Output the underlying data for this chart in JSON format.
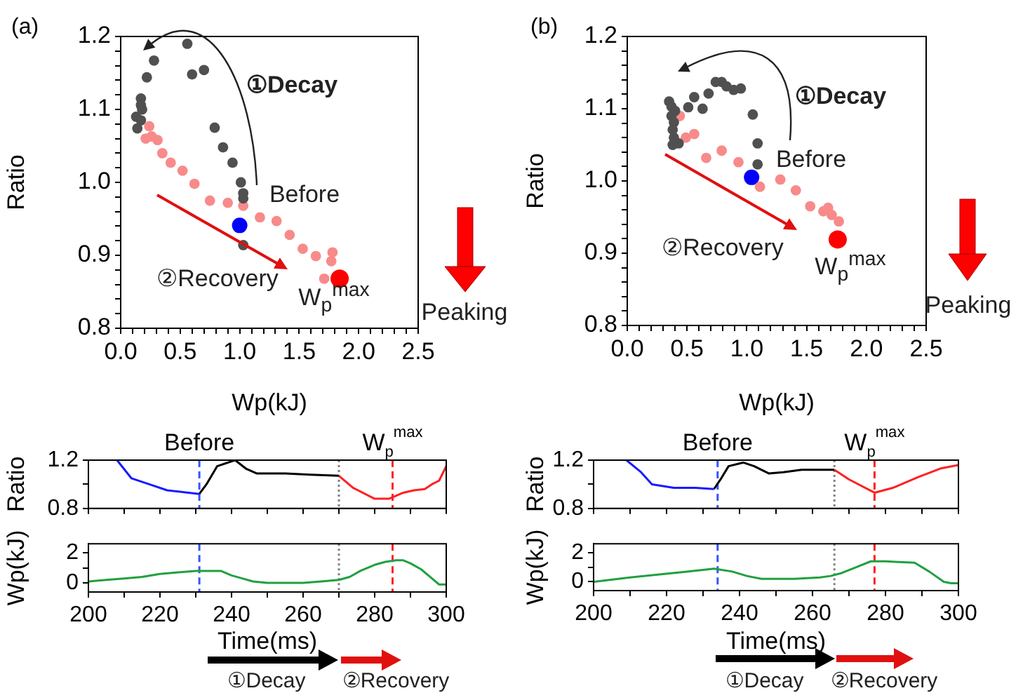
{
  "chart_data": [
    {
      "type": "scatter",
      "title": "(a)",
      "xlabel": "Wp(kJ)",
      "ylabel": "Ratio",
      "marker": "circle",
      "xlim": [
        0,
        2.5
      ],
      "ylim": [
        0.8,
        1.2
      ],
      "xticks": [
        {
          "value": 0,
          "label": "0.0"
        },
        {
          "value": 0.1,
          "label": null
        },
        {
          "value": 0.2,
          "label": null
        },
        {
          "value": 0.3,
          "label": null
        },
        {
          "value": 0.4,
          "label": null
        },
        0.5,
        {
          "value": 0.6,
          "label": null
        },
        {
          "value": 0.7,
          "label": null
        },
        {
          "value": 0.8,
          "label": null
        },
        {
          "value": 0.9,
          "label": null
        },
        {
          "value": 1,
          "label": "1.0"
        },
        {
          "value": 1.1,
          "label": null
        },
        {
          "value": 1.2,
          "label": null
        },
        {
          "value": 1.3,
          "label": null
        },
        {
          "value": 1.4,
          "label": null
        },
        1.5,
        {
          "value": 1.6,
          "label": null
        },
        {
          "value": 1.7,
          "label": null
        },
        {
          "value": 1.8,
          "label": null
        },
        {
          "value": 1.9,
          "label": null
        },
        {
          "value": 2,
          "label": "2.0"
        },
        {
          "value": 2.1,
          "label": null
        },
        {
          "value": 2.2,
          "label": null
        },
        {
          "value": 2.3,
          "label": null
        },
        {
          "value": 2.4,
          "label": null
        },
        2.5
      ],
      "yticks": [
        0.8,
        {
          "value": 0.82,
          "label": null
        },
        {
          "value": 0.84,
          "label": null
        },
        {
          "value": 0.86,
          "label": null
        },
        {
          "value": 0.88,
          "label": null
        },
        0.9,
        {
          "value": 0.92,
          "label": null
        },
        {
          "value": 0.94,
          "label": null
        },
        {
          "value": 0.96,
          "label": null
        },
        {
          "value": 0.98,
          "label": null
        },
        {
          "value": 1,
          "label": "1.0"
        },
        {
          "value": 1.02,
          "label": null
        },
        {
          "value": 1.04,
          "label": null
        },
        {
          "value": 1.06,
          "label": null
        },
        {
          "value": 1.08,
          "label": null
        },
        1.1,
        {
          "value": 1.12,
          "label": null
        },
        {
          "value": 1.14,
          "label": null
        },
        {
          "value": 1.16,
          "label": null
        },
        {
          "value": 1.18,
          "label": null
        },
        1.2
      ],
      "annotations": [
        "①Decay",
        "Before",
        "②Recovery",
        "W$_{p}$$^{max}$",
        "Peaking"
      ],
      "series": [
        {
          "color": "#505050",
          "x": [
            0.56,
            0.28,
            0.22,
            0.6,
            0.7,
            0.17,
            0.17,
            0.18,
            0.13,
            0.17,
            0.14,
            0.79,
            0.86,
            0.94,
            1.01,
            1.03,
            1.03,
            1.03
          ],
          "values": [
            1.19,
            1.167,
            1.144,
            1.148,
            1.154,
            1.115,
            1.106,
            1.1,
            1.09,
            1.085,
            1.074,
            1.075,
            1.048,
            1.027,
            1.0,
            0.985,
            0.978,
            0.914
          ]
        },
        {
          "color": "#f88a8a",
          "x": [
            0.24,
            0.21,
            0.26,
            0.31,
            0.35,
            0.42,
            0.52,
            0.62,
            0.75,
            0.9,
            1.03,
            1.17,
            1.31,
            1.42,
            1.53,
            1.64,
            1.78,
            1.77,
            1.71
          ],
          "values": [
            1.077,
            1.06,
            1.063,
            1.058,
            1.04,
            1.027,
            1.016,
            0.998,
            0.975,
            0.972,
            0.968,
            0.952,
            0.947,
            0.928,
            0.909,
            0.899,
            0.904,
            0.892,
            0.868
          ]
        },
        {
          "color": "#0000ff",
          "x": [
            1.0
          ],
          "values": [
            0.941
          ]
        },
        {
          "color": "#ff0000",
          "x": [
            1.84
          ],
          "values": [
            0.868
          ]
        }
      ]
    },
    {
      "type": "scatter",
      "title": "(b)",
      "xlabel": "Wp(kJ)",
      "ylabel": "Ratio",
      "marker": "circle",
      "xlim": [
        0,
        2.5
      ],
      "ylim": [
        0.8,
        1.2
      ],
      "xticks": [
        {
          "value": 0,
          "label": "0.0"
        },
        {
          "value": 0.1,
          "label": null
        },
        {
          "value": 0.2,
          "label": null
        },
        {
          "value": 0.3,
          "label": null
        },
        {
          "value": 0.4,
          "label": null
        },
        0.5,
        {
          "value": 0.6,
          "label": null
        },
        {
          "value": 0.7,
          "label": null
        },
        {
          "value": 0.8,
          "label": null
        },
        {
          "value": 0.9,
          "label": null
        },
        {
          "value": 1,
          "label": "1.0"
        },
        {
          "value": 1.1,
          "label": null
        },
        {
          "value": 1.2,
          "label": null
        },
        {
          "value": 1.3,
          "label": null
        },
        {
          "value": 1.4,
          "label": null
        },
        1.5,
        {
          "value": 1.6,
          "label": null
        },
        {
          "value": 1.7,
          "label": null
        },
        {
          "value": 1.8,
          "label": null
        },
        {
          "value": 1.9,
          "label": null
        },
        {
          "value": 2,
          "label": "2.0"
        },
        {
          "value": 2.1,
          "label": null
        },
        {
          "value": 2.2,
          "label": null
        },
        {
          "value": 2.3,
          "label": null
        },
        {
          "value": 2.4,
          "label": null
        },
        2.5
      ],
      "yticks": [
        0.8,
        {
          "value": 0.82,
          "label": null
        },
        {
          "value": 0.84,
          "label": null
        },
        {
          "value": 0.86,
          "label": null
        },
        {
          "value": 0.88,
          "label": null
        },
        0.9,
        {
          "value": 0.92,
          "label": null
        },
        {
          "value": 0.94,
          "label": null
        },
        {
          "value": 0.96,
          "label": null
        },
        {
          "value": 0.98,
          "label": null
        },
        {
          "value": 1,
          "label": "1.0"
        },
        {
          "value": 1.02,
          "label": null
        },
        {
          "value": 1.04,
          "label": null
        },
        {
          "value": 1.06,
          "label": null
        },
        {
          "value": 1.08,
          "label": null
        },
        1.1,
        {
          "value": 1.12,
          "label": null
        },
        {
          "value": 1.14,
          "label": null
        },
        {
          "value": 1.16,
          "label": null
        },
        {
          "value": 1.18,
          "label": null
        },
        1.2
      ],
      "annotations": [
        "①Decay",
        "Before",
        "②Recovery",
        "W$_{p}$$^{max}$",
        "Peaking"
      ],
      "series": [
        {
          "color": "#505050",
          "x": [
            0.35,
            0.37,
            0.4,
            0.37,
            0.39,
            0.38,
            0.39,
            0.38,
            0.43,
            0.51,
            0.56,
            0.63,
            0.68,
            0.74,
            0.79,
            0.83,
            0.89,
            0.95,
            1.05,
            1.09,
            1.09
          ],
          "values": [
            1.11,
            1.103,
            1.097,
            1.09,
            1.081,
            1.071,
            1.06,
            1.05,
            1.052,
            1.102,
            1.116,
            1.1,
            1.121,
            1.137,
            1.137,
            1.131,
            1.126,
            1.128,
            1.092,
            1.052,
            1.023
          ]
        },
        {
          "color": "#f88a8a",
          "x": [
            0.44,
            0.49,
            0.56,
            0.66,
            0.79,
            0.93,
            1.11,
            1.28,
            1.41,
            1.53,
            1.64,
            1.68,
            1.71,
            1.77
          ],
          "values": [
            1.09,
            1.06,
            1.065,
            1.032,
            1.042,
            1.026,
            0.992,
            1.002,
            0.987,
            0.965,
            0.958,
            0.963,
            0.953,
            0.944
          ]
        },
        {
          "color": "#0000ff",
          "x": [
            1.04
          ],
          "values": [
            1.005
          ]
        },
        {
          "color": "#ff0000",
          "x": [
            1.76
          ],
          "values": [
            0.919
          ]
        }
      ]
    },
    {
      "type": "line",
      "ylabel": "Ratio",
      "tick_labels": "y",
      "xlim": [
        200,
        300
      ],
      "xticks": [
        200,
        210,
        220,
        230,
        240,
        250,
        260,
        270,
        280,
        290,
        300
      ],
      "ylim": [
        0.8,
        1.2
      ],
      "yticks": [
        0.8,
        {
          "value": 1,
          "label": null
        },
        1.2
      ],
      "ref_lines": [
        {
          "axis": "x",
          "value": 231,
          "label": "Before",
          "color": "#3355ff",
          "line_style": "dashed"
        },
        {
          "axis": "x",
          "value": 270,
          "color": "#808080",
          "line_style": "dotted"
        },
        {
          "axis": "x",
          "value": 285,
          "label": "W$_{p}$$^{max}$",
          "color": "#ff2020",
          "line_style": "dashed"
        }
      ],
      "series": [
        {
          "color": "#1a1aff",
          "x": [
            208,
            212,
            217,
            222,
            228,
            231
          ],
          "values": [
            1.2,
            1.05,
            1.0,
            0.95,
            0.93,
            0.92
          ]
        },
        {
          "color": "#000000",
          "x": [
            231,
            233,
            236,
            241,
            244,
            247,
            255,
            262,
            270
          ],
          "values": [
            0.92,
            1.0,
            1.15,
            1.2,
            1.13,
            1.09,
            1.09,
            1.08,
            1.07
          ]
        },
        {
          "color": "#ff2020",
          "x": [
            270,
            274,
            280,
            284,
            288,
            291,
            294,
            296,
            298,
            300
          ],
          "values": [
            1.07,
            0.97,
            0.88,
            0.88,
            0.93,
            0.95,
            0.96,
            1.0,
            1.03,
            1.15
          ]
        }
      ]
    },
    {
      "type": "line",
      "xlabel": "Time(ms)",
      "ylabel": "Wp(kJ)",
      "xlim": [
        200,
        300
      ],
      "xticks": [
        200,
        {
          "value": 210,
          "label": null
        },
        220,
        {
          "value": 230,
          "label": null
        },
        240,
        {
          "value": 250,
          "label": null
        },
        260,
        {
          "value": 270,
          "label": null
        },
        280,
        {
          "value": 290,
          "label": null
        },
        300
      ],
      "ylim": [
        -0.6,
        2.6
      ],
      "yticks": [
        0,
        {
          "value": 1,
          "label": null
        },
        2
      ],
      "ref_lines": [
        {
          "axis": "x",
          "value": 231,
          "color": "#3355ff",
          "line_style": "dashed"
        },
        {
          "axis": "x",
          "value": 270,
          "color": "#808080",
          "line_style": "dotted"
        },
        {
          "axis": "x",
          "value": 285,
          "color": "#ff2020",
          "line_style": "dashed"
        }
      ],
      "annotations": [
        "①Decay",
        "②Recovery"
      ],
      "series": [
        {
          "color": "#20a040",
          "x": [
            200,
            205,
            210,
            215,
            220,
            225,
            230,
            234,
            237,
            240,
            243,
            246,
            250,
            255,
            260,
            265,
            270,
            273,
            276,
            280,
            283,
            286,
            288,
            290,
            293,
            296,
            298,
            300
          ],
          "values": [
            0.1,
            0.2,
            0.3,
            0.4,
            0.6,
            0.7,
            0.8,
            0.8,
            0.8,
            0.5,
            0.3,
            0.1,
            0,
            0,
            0,
            0.1,
            0.2,
            0.4,
            0.8,
            1.2,
            1.4,
            1.5,
            1.5,
            1.3,
            0.9,
            0.3,
            -0.1,
            -0.1
          ]
        }
      ]
    },
    {
      "type": "line",
      "ylabel": "Ratio",
      "tick_labels": "y",
      "xlim": [
        200,
        300
      ],
      "xticks": [
        200,
        210,
        220,
        230,
        240,
        250,
        260,
        270,
        280,
        290,
        300
      ],
      "ylim": [
        0.8,
        1.2
      ],
      "yticks": [
        0.8,
        {
          "value": 1,
          "label": null
        },
        1.2
      ],
      "ref_lines": [
        {
          "axis": "x",
          "value": 234,
          "label": "Before",
          "color": "#3355ff",
          "line_style": "dashed"
        },
        {
          "axis": "x",
          "value": 266,
          "color": "#808080",
          "line_style": "dotted"
        },
        {
          "axis": "x",
          "value": 277,
          "label": "W$_{p}$$^{max}$",
          "color": "#ff2020",
          "line_style": "dashed"
        }
      ],
      "series": [
        {
          "color": "#1a1aff",
          "x": [
            209,
            213,
            216,
            222,
            228,
            233
          ],
          "values": [
            1.2,
            1.1,
            1.0,
            0.97,
            0.97,
            0.96
          ]
        },
        {
          "color": "#000000",
          "x": [
            233,
            235,
            237,
            241,
            244,
            248,
            252,
            257,
            266
          ],
          "values": [
            0.96,
            1.05,
            1.15,
            1.18,
            1.15,
            1.09,
            1.1,
            1.12,
            1.12
          ]
        },
        {
          "color": "#ff2020",
          "x": [
            266,
            270,
            277,
            282,
            289,
            295,
            300
          ],
          "values": [
            1.12,
            1.04,
            0.93,
            0.97,
            1.06,
            1.13,
            1.16
          ]
        }
      ]
    },
    {
      "type": "line",
      "xlabel": "Time(ms)",
      "ylabel": "Wp(kJ)",
      "xlim": [
        200,
        300
      ],
      "xticks": [
        200,
        {
          "value": 210,
          "label": null
        },
        220,
        {
          "value": 230,
          "label": null
        },
        240,
        {
          "value": 250,
          "label": null
        },
        260,
        {
          "value": 270,
          "label": null
        },
        280,
        {
          "value": 290,
          "label": null
        },
        300
      ],
      "ylim": [
        -0.6,
        2.6
      ],
      "yticks": [
        0,
        {
          "value": 1,
          "label": null
        },
        2
      ],
      "ref_lines": [
        {
          "axis": "x",
          "value": 234,
          "color": "#3355ff",
          "line_style": "dashed"
        },
        {
          "axis": "x",
          "value": 266,
          "color": "#808080",
          "line_style": "dotted"
        },
        {
          "axis": "x",
          "value": 277,
          "color": "#ff2020",
          "line_style": "dashed"
        }
      ],
      "annotations": [
        "①Decay",
        "②Recovery"
      ],
      "series": [
        {
          "color": "#20a040",
          "x": [
            200,
            210,
            218,
            226,
            233,
            238,
            242,
            246,
            255,
            262,
            265,
            268,
            272,
            276,
            280,
            288,
            292,
            296,
            298,
            300
          ],
          "values": [
            0,
            0.3,
            0.5,
            0.7,
            0.9,
            0.7,
            0.4,
            0.2,
            0.2,
            0.3,
            0.4,
            0.6,
            1,
            1.4,
            1.4,
            1.3,
            0.7,
            0,
            -0.1,
            -0.1
          ]
        }
      ]
    }
  ]
}
